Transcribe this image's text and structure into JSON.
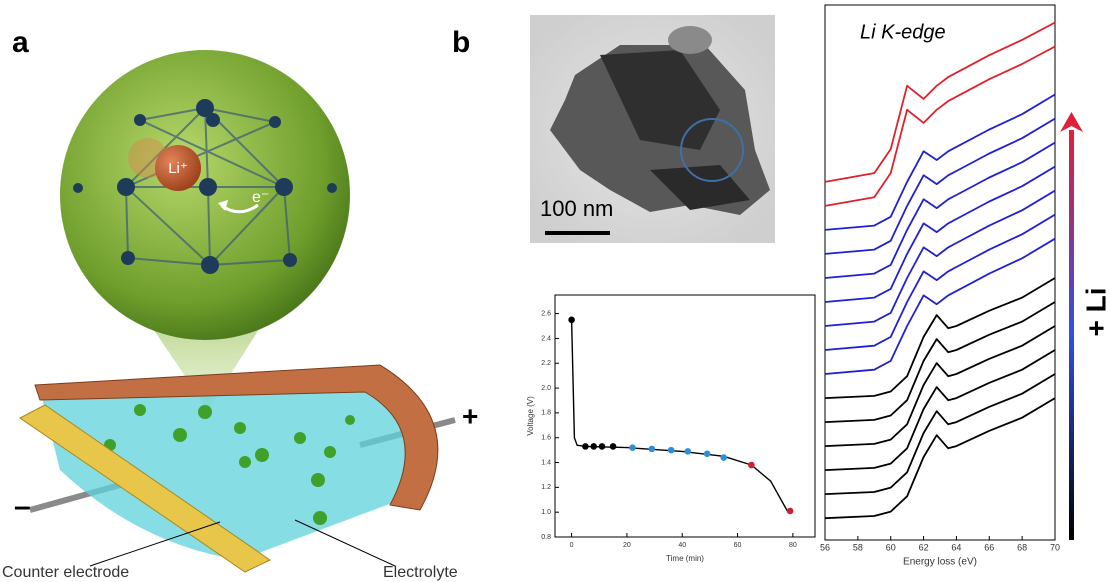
{
  "panel_labels": [
    "a",
    "b"
  ],
  "diagram": {
    "ion": "Li⁺",
    "electron": "e⁻",
    "positive_terminal": "+",
    "negative_terminal": "–",
    "counter_electrode": "Counter electrode",
    "electrolyte": "Electrolyte"
  },
  "micrograph": {
    "scale_bar": "100 nm"
  },
  "arrow_label": "+ Li",
  "chart_data": [
    {
      "type": "line",
      "x_label": "Time (min)",
      "y_label": "Voltage (V)",
      "xlim": [
        -6,
        88
      ],
      "ylim": [
        0.8,
        2.75
      ],
      "xticks": [
        0,
        20,
        40,
        60,
        80
      ],
      "yticks": [
        0.8,
        {
          "value": 1,
          "label": "1.0"
        },
        1.2,
        1.4,
        1.6,
        1.8,
        {
          "value": 2,
          "label": "2.0"
        },
        2.2,
        2.4,
        2.6
      ],
      "series": [
        {
          "type": "line",
          "color": "#000000",
          "x": [
            0,
            1,
            2,
            5,
            20,
            40,
            55,
            65,
            72,
            78
          ],
          "values": [
            2.55,
            1.6,
            1.54,
            1.53,
            1.52,
            1.49,
            1.45,
            1.38,
            1.25,
            1.01
          ]
        },
        {
          "type": "scatter",
          "color": "#000000",
          "x": [
            0,
            5,
            8,
            11,
            15
          ],
          "values": [
            2.55,
            1.53,
            1.53,
            1.53,
            1.53
          ]
        },
        {
          "type": "scatter",
          "color": "#2e8fd6",
          "x": [
            22,
            29,
            36,
            42,
            49,
            55
          ],
          "values": [
            1.52,
            1.51,
            1.5,
            1.49,
            1.47,
            1.44
          ]
        },
        {
          "type": "scatter",
          "color": "#d0202a",
          "x": [
            65,
            79
          ],
          "values": [
            1.38,
            1.01
          ]
        }
      ]
    },
    {
      "type": "line",
      "title": "Li K-edge",
      "x_label": "Energy loss (eV)",
      "xlim": [
        56,
        70
      ],
      "ylim": [
        0,
        24.5
      ],
      "xticks": [
        56,
        58,
        60,
        62,
        64,
        66,
        68,
        70
      ],
      "x": [
        56,
        59,
        60,
        61,
        62,
        62.8,
        63.5,
        64,
        66,
        68,
        70
      ],
      "series": [
        {
          "color": "#000000",
          "values": [
            1,
            1.1,
            1.3,
            2,
            3.8,
            4.8,
            4.2,
            4.3,
            5,
            5.6,
            6.5
          ]
        },
        {
          "color": "#000000",
          "values": [
            2.1,
            2.2,
            2.4,
            3.1,
            4.9,
            5.9,
            5.3,
            5.4,
            6.1,
            6.7,
            7.6
          ]
        },
        {
          "color": "#000000",
          "values": [
            3.2,
            3.3,
            3.5,
            4.2,
            6,
            7,
            6.4,
            6.5,
            7.2,
            7.8,
            8.7
          ]
        },
        {
          "color": "#000000",
          "values": [
            4.3,
            4.4,
            4.6,
            5.3,
            7.1,
            8.1,
            7.5,
            7.6,
            8.3,
            8.9,
            9.8
          ]
        },
        {
          "color": "#000000",
          "values": [
            5.4,
            5.5,
            5.7,
            6.4,
            8.2,
            9.2,
            8.6,
            8.7,
            9.4,
            10,
            10.9
          ]
        },
        {
          "color": "#000000",
          "values": [
            6.5,
            6.6,
            6.8,
            7.5,
            9.3,
            10.3,
            9.7,
            9.8,
            10.5,
            11.1,
            12
          ]
        },
        {
          "color": "#2020d0",
          "values": [
            7.6,
            7.8,
            8.2,
            9.8,
            11.2,
            10.8,
            11.2,
            11.4,
            12.2,
            12.9,
            13.8
          ]
        },
        {
          "color": "#2020d0",
          "values": [
            8.7,
            8.9,
            9.3,
            10.9,
            12.3,
            11.9,
            12.3,
            12.5,
            13.3,
            14,
            14.9
          ]
        },
        {
          "color": "#2020d0",
          "values": [
            9.8,
            10,
            10.4,
            12,
            13.4,
            13,
            13.4,
            13.6,
            14.4,
            15.1,
            16
          ]
        },
        {
          "color": "#2020d0",
          "values": [
            10.9,
            11.1,
            11.5,
            13.1,
            14.5,
            14.1,
            14.5,
            14.7,
            15.5,
            16.2,
            17.1
          ]
        },
        {
          "color": "#2020d0",
          "values": [
            12,
            12.2,
            12.6,
            14.2,
            15.6,
            15.2,
            15.6,
            15.8,
            16.6,
            17.3,
            18.2
          ]
        },
        {
          "color": "#2020d0",
          "values": [
            13.1,
            13.3,
            13.7,
            15.3,
            16.7,
            16.3,
            16.7,
            16.9,
            17.7,
            18.4,
            19.3
          ]
        },
        {
          "color": "#2020d0",
          "values": [
            14.2,
            14.4,
            14.8,
            16.4,
            17.8,
            17.4,
            17.8,
            18,
            18.8,
            19.5,
            20.4
          ]
        },
        {
          "color": "#e0202a",
          "values": [
            15.3,
            15.7,
            16.8,
            19.7,
            19.1,
            19.7,
            20.1,
            20.3,
            21.1,
            21.8,
            22.6
          ]
        },
        {
          "color": "#e0202a",
          "values": [
            16.4,
            16.8,
            17.9,
            20.8,
            20.2,
            20.8,
            21.2,
            21.4,
            22.2,
            22.9,
            23.7
          ]
        }
      ]
    }
  ]
}
